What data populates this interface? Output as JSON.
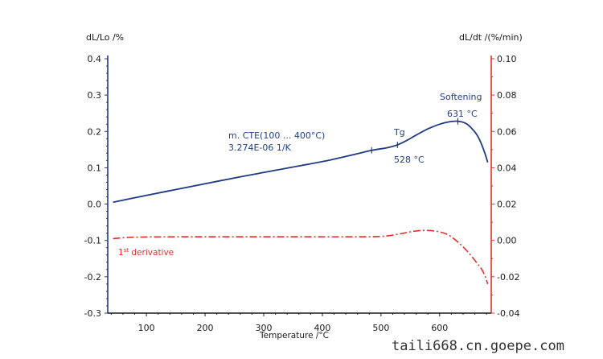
{
  "chart_data": {
    "type": "line",
    "title": "",
    "xlabel": "Temperature /°C",
    "ylabel": "dL/Lo /%",
    "ylabel_right": "dL/dt /(%/min)",
    "xlim": [
      34,
      688
    ],
    "ylim": [
      -0.3,
      0.4
    ],
    "ylim_right": [
      -0.04,
      0.1
    ],
    "x_ticks": [
      100,
      200,
      300,
      400,
      500,
      600
    ],
    "x_tick_labels": [
      "100",
      "200",
      "300",
      "400",
      "500",
      "600"
    ],
    "y_ticks": [
      0.4,
      0.3,
      0.2,
      0.1,
      0.0,
      -0.1,
      -0.2,
      -0.3
    ],
    "y_tick_labels": [
      "0.4",
      "0.3",
      "0.2",
      "0.1",
      "0.0",
      "-0.1",
      "-0.2",
      "-0.3"
    ],
    "y_right_ticks": [
      0.1,
      0.08,
      0.06,
      0.04,
      0.02,
      0.0,
      -0.02,
      -0.04
    ],
    "y_right_tick_labels": [
      "0.10",
      "0.08",
      "0.06",
      "0.04",
      "0.02",
      "0.00",
      "-0.02",
      "-0.04"
    ],
    "grid": false,
    "series": [
      {
        "name": "dL/Lo",
        "axis": "left",
        "color": "#1f3a85",
        "style": "solid",
        "x": [
          43,
          100,
          150,
          200,
          250,
          300,
          350,
          400,
          450,
          484,
          510,
          528,
          545,
          560,
          580,
          600,
          615,
          631,
          645,
          655,
          665,
          675,
          682
        ],
        "y": [
          0.005,
          0.024,
          0.04,
          0.056,
          0.072,
          0.087,
          0.102,
          0.117,
          0.135,
          0.148,
          0.155,
          0.163,
          0.176,
          0.19,
          0.207,
          0.22,
          0.226,
          0.228,
          0.222,
          0.208,
          0.187,
          0.15,
          0.115
        ]
      },
      {
        "name": "1st derivative",
        "axis": "right",
        "color": "#e0302a",
        "style": "dashdot",
        "x": [
          43,
          80,
          150,
          250,
          350,
          450,
          500,
          530,
          555,
          575,
          595,
          615,
          635,
          650,
          665,
          672,
          678,
          682
        ],
        "y": [
          0.001,
          0.0018,
          0.002,
          0.002,
          0.002,
          0.002,
          0.0022,
          0.0035,
          0.005,
          0.0055,
          0.005,
          0.003,
          -0.002,
          -0.007,
          -0.013,
          -0.016,
          -0.02,
          -0.024
        ]
      }
    ],
    "annotations": [
      {
        "text": "m. CTE(100 ... 400°C)",
        "color": "#1f3f8a"
      },
      {
        "text": "3.274E-06 1/K",
        "color": "#1f3f8a"
      },
      {
        "text": "Tg",
        "color": "#1f3f8a"
      },
      {
        "text": "528 °C",
        "color": "#1f3f8a"
      },
      {
        "text": "Softening",
        "color": "#1f3f8a"
      },
      {
        "text": "631 °C",
        "color": "#1f3f8a"
      },
      {
        "text": "1st derivative",
        "color": "#e0302a"
      }
    ],
    "markers": [
      {
        "series": "dL/Lo",
        "x": 484,
        "y": 0.148
      },
      {
        "series": "dL/Lo",
        "x": 528,
        "y": 0.163
      },
      {
        "series": "dL/Lo",
        "x": 631,
        "y": 0.228
      }
    ],
    "legend": "none"
  },
  "labels": {
    "cte_line1": "m. CTE(100 ... 400°C)",
    "cte_line2": "3.274E-06 1/K",
    "tg": "Tg",
    "tg_temp": "528 °C",
    "softening": "Softening",
    "softening_temp": "631 °C",
    "derivative_main": "1",
    "derivative_sup": "st",
    "derivative_rest": " derivative",
    "watermark": "taili668.cn.goepe.com"
  },
  "colors": {
    "left_axis": "#1f3a85",
    "right_axis": "#e0302a",
    "bottom_axis": "#1a1a1a"
  }
}
